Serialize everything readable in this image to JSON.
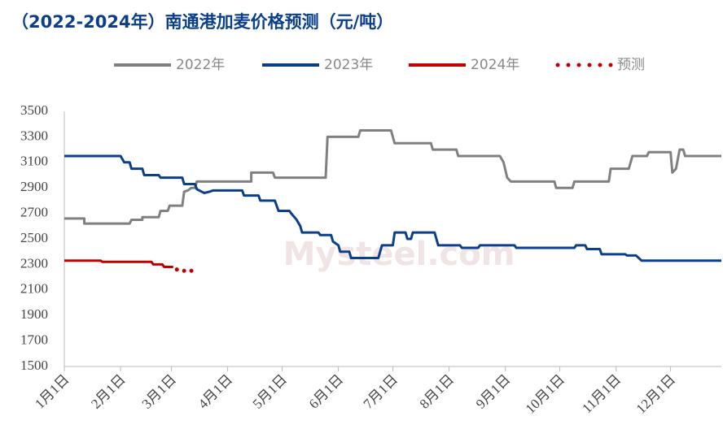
{
  "chart_data": {
    "type": "line",
    "title": "（2022-2024年）南通港加麦价格预测（元/吨）",
    "watermark": "Mysteel.com",
    "xlim": [
      0,
      362
    ],
    "xticks": [
      {
        "value": 0,
        "label": "1月1日"
      },
      {
        "value": 31,
        "label": "2月1日"
      },
      {
        "value": 59,
        "label": "3月1日"
      },
      {
        "value": 90,
        "label": "4月1日"
      },
      {
        "value": 120,
        "label": "5月1日"
      },
      {
        "value": 151,
        "label": "6月1日"
      },
      {
        "value": 181,
        "label": "7月1日"
      },
      {
        "value": 212,
        "label": "8月1日"
      },
      {
        "value": 243,
        "label": "9月1日"
      },
      {
        "value": 273,
        "label": "10月1日"
      },
      {
        "value": 304,
        "label": "11月1日"
      },
      {
        "value": 334,
        "label": "12月1日"
      }
    ],
    "ylim": [
      1500,
      3500
    ],
    "yticks": [
      1500,
      1700,
      1900,
      2100,
      2300,
      2500,
      2700,
      2900,
      3100,
      3300,
      3500
    ],
    "grid": false,
    "legend": "top",
    "series": [
      {
        "name": "2022年",
        "color": "#808080",
        "style": "solid",
        "x": [
          0,
          11,
          11,
          36,
          37,
          43,
          43,
          52,
          53,
          57,
          58,
          65,
          66,
          68,
          70,
          72,
          73,
          103,
          103,
          115,
          116,
          144,
          145,
          162,
          163,
          180,
          182,
          202,
          203,
          216,
          217,
          240,
          242,
          244,
          246,
          270,
          271,
          280,
          281,
          300,
          301,
          311,
          313,
          321,
          322,
          334,
          335,
          337,
          339,
          341,
          342,
          362
        ],
        "values": [
          2660,
          2660,
          2620,
          2620,
          2650,
          2650,
          2670,
          2670,
          2720,
          2720,
          2760,
          2760,
          2870,
          2880,
          2900,
          2900,
          2950,
          2950,
          3020,
          3020,
          2980,
          2980,
          3300,
          3300,
          3350,
          3350,
          3250,
          3250,
          3200,
          3200,
          3150,
          3150,
          3100,
          2980,
          2950,
          2950,
          2900,
          2900,
          2950,
          2950,
          3050,
          3050,
          3150,
          3150,
          3180,
          3180,
          3020,
          3050,
          3200,
          3200,
          3150,
          3150
        ]
      },
      {
        "name": "2023年",
        "color": "#0b3f8a",
        "style": "solid",
        "x": [
          0,
          31,
          33,
          36,
          37,
          43,
          44,
          52,
          53,
          65,
          66,
          72,
          73,
          77,
          80,
          82,
          98,
          99,
          107,
          108,
          116,
          118,
          124,
          125,
          128,
          130,
          131,
          140,
          141,
          147,
          148,
          151,
          152,
          157,
          158,
          173,
          175,
          181,
          182,
          188,
          189,
          191,
          192,
          204,
          206,
          218,
          219,
          228,
          229,
          248,
          249,
          281,
          282,
          287,
          288,
          295,
          296,
          309,
          310,
          315,
          318,
          362
        ],
        "values": [
          3150,
          3150,
          3100,
          3100,
          3050,
          3050,
          3000,
          3000,
          2980,
          2980,
          2930,
          2930,
          2890,
          2860,
          2870,
          2880,
          2880,
          2840,
          2840,
          2800,
          2800,
          2720,
          2720,
          2700,
          2650,
          2600,
          2550,
          2550,
          2530,
          2530,
          2480,
          2450,
          2400,
          2400,
          2350,
          2350,
          2450,
          2450,
          2550,
          2550,
          2500,
          2500,
          2550,
          2550,
          2450,
          2450,
          2430,
          2430,
          2450,
          2450,
          2430,
          2430,
          2450,
          2450,
          2420,
          2420,
          2380,
          2380,
          2370,
          2370,
          2330,
          2330
        ]
      },
      {
        "name": "2024年",
        "color": "#c00000",
        "style": "solid",
        "x": [
          0,
          20,
          21,
          48,
          49,
          54,
          55,
          60
        ],
        "values": [
          2330,
          2330,
          2320,
          2320,
          2300,
          2300,
          2280,
          2280
        ]
      },
      {
        "name": "预测",
        "color": "#c00000",
        "style": "dotted",
        "x": [
          62,
          66,
          70
        ],
        "values": [
          2260,
          2250,
          2250
        ]
      }
    ]
  }
}
